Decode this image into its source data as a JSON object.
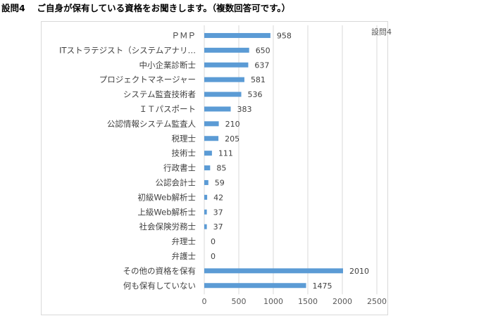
{
  "page_title": "設問4　 ご自身が保有している資格をお聞きします。（複数回答可です。）",
  "chart_data": {
    "type": "bar",
    "orientation": "horizontal",
    "legend_label": "設問4",
    "legend_position": "top-right",
    "categories": [
      "ＰＭＰ",
      "ITストラテジスト（システムアナリ…",
      "中小企業診断士",
      "プロジェクトマネージャー",
      "システム監査技術者",
      "ＩＴパスポート",
      "公認情報システム監査人",
      "税理士",
      "技術士",
      "行政書士",
      "公認会計士",
      "初級Web解析士",
      "上級Web解析士",
      "社会保険労務士",
      "弁理士",
      "弁護士",
      "その他の資格を保有",
      "何も保有していない"
    ],
    "values": [
      958,
      650,
      637,
      581,
      536,
      383,
      210,
      205,
      111,
      85,
      59,
      42,
      37,
      37,
      0,
      0,
      2010,
      1475
    ],
    "x_ticks": [
      "0",
      "500",
      "1000",
      "1500",
      "2000",
      "2500"
    ],
    "xlim": [
      0,
      2500
    ],
    "grid": true,
    "bar_color": "#5b9bd5"
  }
}
